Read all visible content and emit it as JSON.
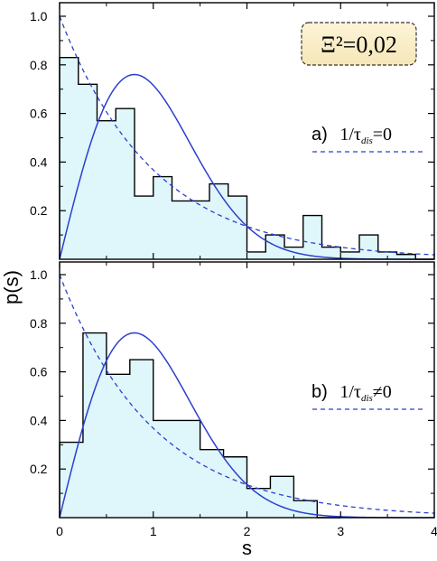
{
  "chart_data": [
    {
      "type": "histogram",
      "panel": "a",
      "ylabel": "p(s)",
      "xlim": [
        0,
        4
      ],
      "ylim": [
        0,
        1.05
      ],
      "y_ticks": [
        "0.2",
        "0.4",
        "0.6",
        "0.8",
        "1.0"
      ],
      "annotation": "Ξ²=0,02",
      "legend_prefix": "a)",
      "legend_main": "1/τ",
      "legend_sub": "dis",
      "legend_suffix": "=0",
      "bin_width": 0.2,
      "bin_starts": [
        0,
        0.2,
        0.4,
        0.6,
        0.8,
        1.0,
        1.2,
        1.4,
        1.6,
        1.8,
        2.0,
        2.2,
        2.4,
        2.6,
        2.8,
        3.0,
        3.2,
        3.4,
        3.6,
        3.8
      ],
      "values": [
        0.83,
        0.72,
        0.57,
        0.62,
        0.26,
        0.34,
        0.24,
        0.24,
        0.31,
        0.26,
        0.03,
        0.1,
        0.05,
        0.18,
        0.05,
        0.03,
        0.1,
        0.03,
        0.02,
        0.0
      ],
      "series": [
        {
          "name": "histogram",
          "color": "#000000",
          "fill": "#dff6fb"
        },
        {
          "name": "Wigner surmise",
          "color": "#2b3fcf",
          "style": "solid"
        },
        {
          "name": "Poisson exp(-s)",
          "color": "#2b3fcf",
          "style": "dashed"
        }
      ]
    },
    {
      "type": "histogram",
      "panel": "b",
      "xlabel": "s",
      "xlim": [
        0,
        4
      ],
      "ylim": [
        0,
        1.05
      ],
      "x_ticks": [
        "0",
        "1",
        "2",
        "3",
        "4"
      ],
      "y_ticks": [
        "0.2",
        "0.4",
        "0.6",
        "0.8",
        "1.0"
      ],
      "legend_prefix": "b)",
      "legend_main": "1/τ",
      "legend_sub": "dis",
      "legend_suffix": "≠0",
      "bin_width": 0.25,
      "bin_starts": [
        0,
        0.25,
        0.5,
        0.75,
        1.0,
        1.25,
        1.5,
        1.75,
        2.0,
        2.25,
        2.5,
        2.75
      ],
      "values": [
        0.31,
        0.76,
        0.59,
        0.65,
        0.4,
        0.4,
        0.28,
        0.25,
        0.12,
        0.17,
        0.07,
        0.0
      ],
      "series": [
        {
          "name": "histogram",
          "color": "#000000",
          "fill": "#dff6fb"
        },
        {
          "name": "Wigner surmise",
          "color": "#2b3fcf",
          "style": "solid"
        },
        {
          "name": "Poisson exp(-s)",
          "color": "#2b3fcf",
          "style": "dashed"
        }
      ]
    }
  ]
}
